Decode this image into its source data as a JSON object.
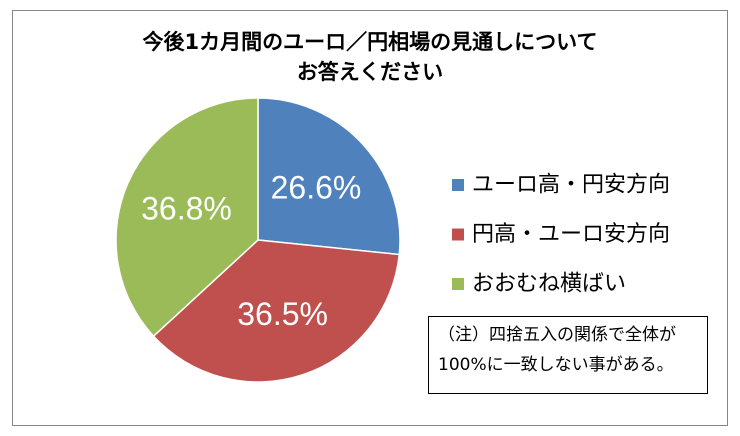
{
  "chart_data": {
    "type": "pie",
    "title": [
      "今後1カ月間のユーロ／円相場の見通しについて",
      "お答えください"
    ],
    "series": [
      {
        "label": "ユーロ高・円安方向",
        "value": 26.6,
        "data_label": "26.6%",
        "color": "#4F81BD"
      },
      {
        "label": "円高・ユーロ安方向",
        "value": 36.5,
        "data_label": "36.5%",
        "color": "#C0504D"
      },
      {
        "label": "おおむね横ばい",
        "value": 36.8,
        "data_label": "36.8%",
        "color": "#9BBB59"
      }
    ],
    "legend_position": "right",
    "note": [
      "（注）四捨五入の関係で全体が",
      "100%に一致しない事がある。"
    ]
  }
}
